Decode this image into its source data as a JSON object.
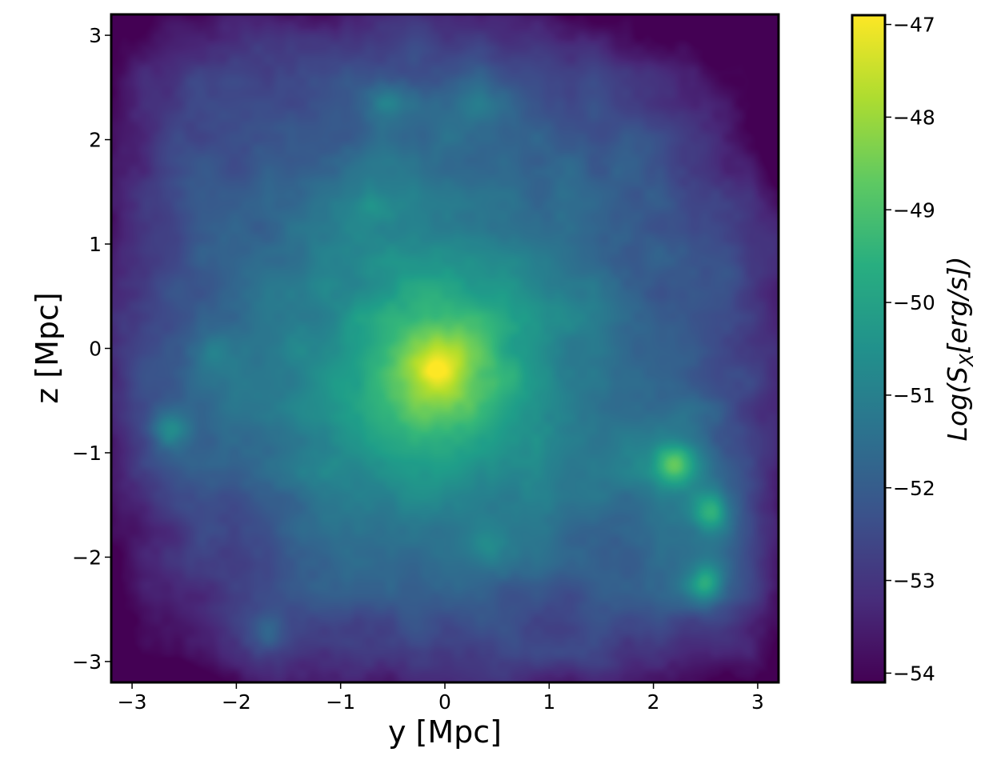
{
  "chart_data": {
    "type": "heatmap",
    "title": "",
    "xlabel": "y [Mpc]",
    "ylabel": "z [Mpc]",
    "xlim": [
      -3.2,
      3.2
    ],
    "ylim": [
      -3.2,
      3.2
    ],
    "xticks": [
      {
        "value": -3,
        "label": "−3"
      },
      {
        "value": -2,
        "label": "−2"
      },
      {
        "value": -1,
        "label": "−1"
      },
      {
        "value": 0,
        "label": "0"
      },
      {
        "value": 1,
        "label": "1"
      },
      {
        "value": 2,
        "label": "2"
      },
      {
        "value": 3,
        "label": "3"
      }
    ],
    "yticks": [
      {
        "value": 3,
        "label": "3"
      },
      {
        "value": 2,
        "label": "2"
      },
      {
        "value": 1,
        "label": "1"
      },
      {
        "value": 0,
        "label": "0"
      },
      {
        "value": -1,
        "label": "−1"
      },
      {
        "value": -2,
        "label": "−2"
      },
      {
        "value": -3,
        "label": "−3"
      }
    ],
    "colorbar": {
      "label_prefix": "Log(S",
      "label_sub": "X",
      "label_suffix": "[erg/s])",
      "colormap": "viridis",
      "range": [
        -54.1,
        -46.9
      ],
      "ticks": [
        {
          "value": -47,
          "label": "−47"
        },
        {
          "value": -48,
          "label": "−48"
        },
        {
          "value": -49,
          "label": "−49"
        },
        {
          "value": -50,
          "label": "−50"
        },
        {
          "value": -51,
          "label": "−51"
        },
        {
          "value": -52,
          "label": "−52"
        },
        {
          "value": -53,
          "label": "−53"
        },
        {
          "value": -54,
          "label": "−54"
        }
      ]
    },
    "features": [
      {
        "name": "main-cluster-core",
        "y": -0.1,
        "z": -0.2,
        "peak_log": -47.2
      },
      {
        "name": "substructure-1",
        "y": 2.2,
        "z": -1.1,
        "peak_log": -48.2
      },
      {
        "name": "substructure-2",
        "y": 2.55,
        "z": -1.55,
        "peak_log": -48.5
      },
      {
        "name": "substructure-3",
        "y": 2.5,
        "z": -2.25,
        "peak_log": -48.5
      },
      {
        "name": "clump-left",
        "y": -2.65,
        "z": -0.75,
        "peak_log": -49.8
      },
      {
        "name": "clump-bottom-left",
        "y": -1.7,
        "z": -2.7,
        "peak_log": -50.3
      },
      {
        "name": "clump-top-1",
        "y": -0.55,
        "z": 2.4,
        "peak_log": -50.6
      },
      {
        "name": "clump-top-2",
        "y": 0.3,
        "z": 2.35,
        "peak_log": -50.6
      },
      {
        "name": "clump-top-left",
        "y": -2.4,
        "z": 2.6,
        "peak_log": -51.3
      },
      {
        "name": "clump-upper-mid",
        "y": -0.65,
        "z": 1.35,
        "peak_log": -50.9
      },
      {
        "name": "clump-lower-mid",
        "y": 0.4,
        "z": -1.9,
        "peak_log": -50.8
      },
      {
        "name": "clump-right",
        "y": 2.8,
        "z": 0.7,
        "peak_log": -51.5
      },
      {
        "name": "clump-left-mid",
        "y": -2.25,
        "z": -0.05,
        "peak_log": -50.6
      }
    ]
  }
}
